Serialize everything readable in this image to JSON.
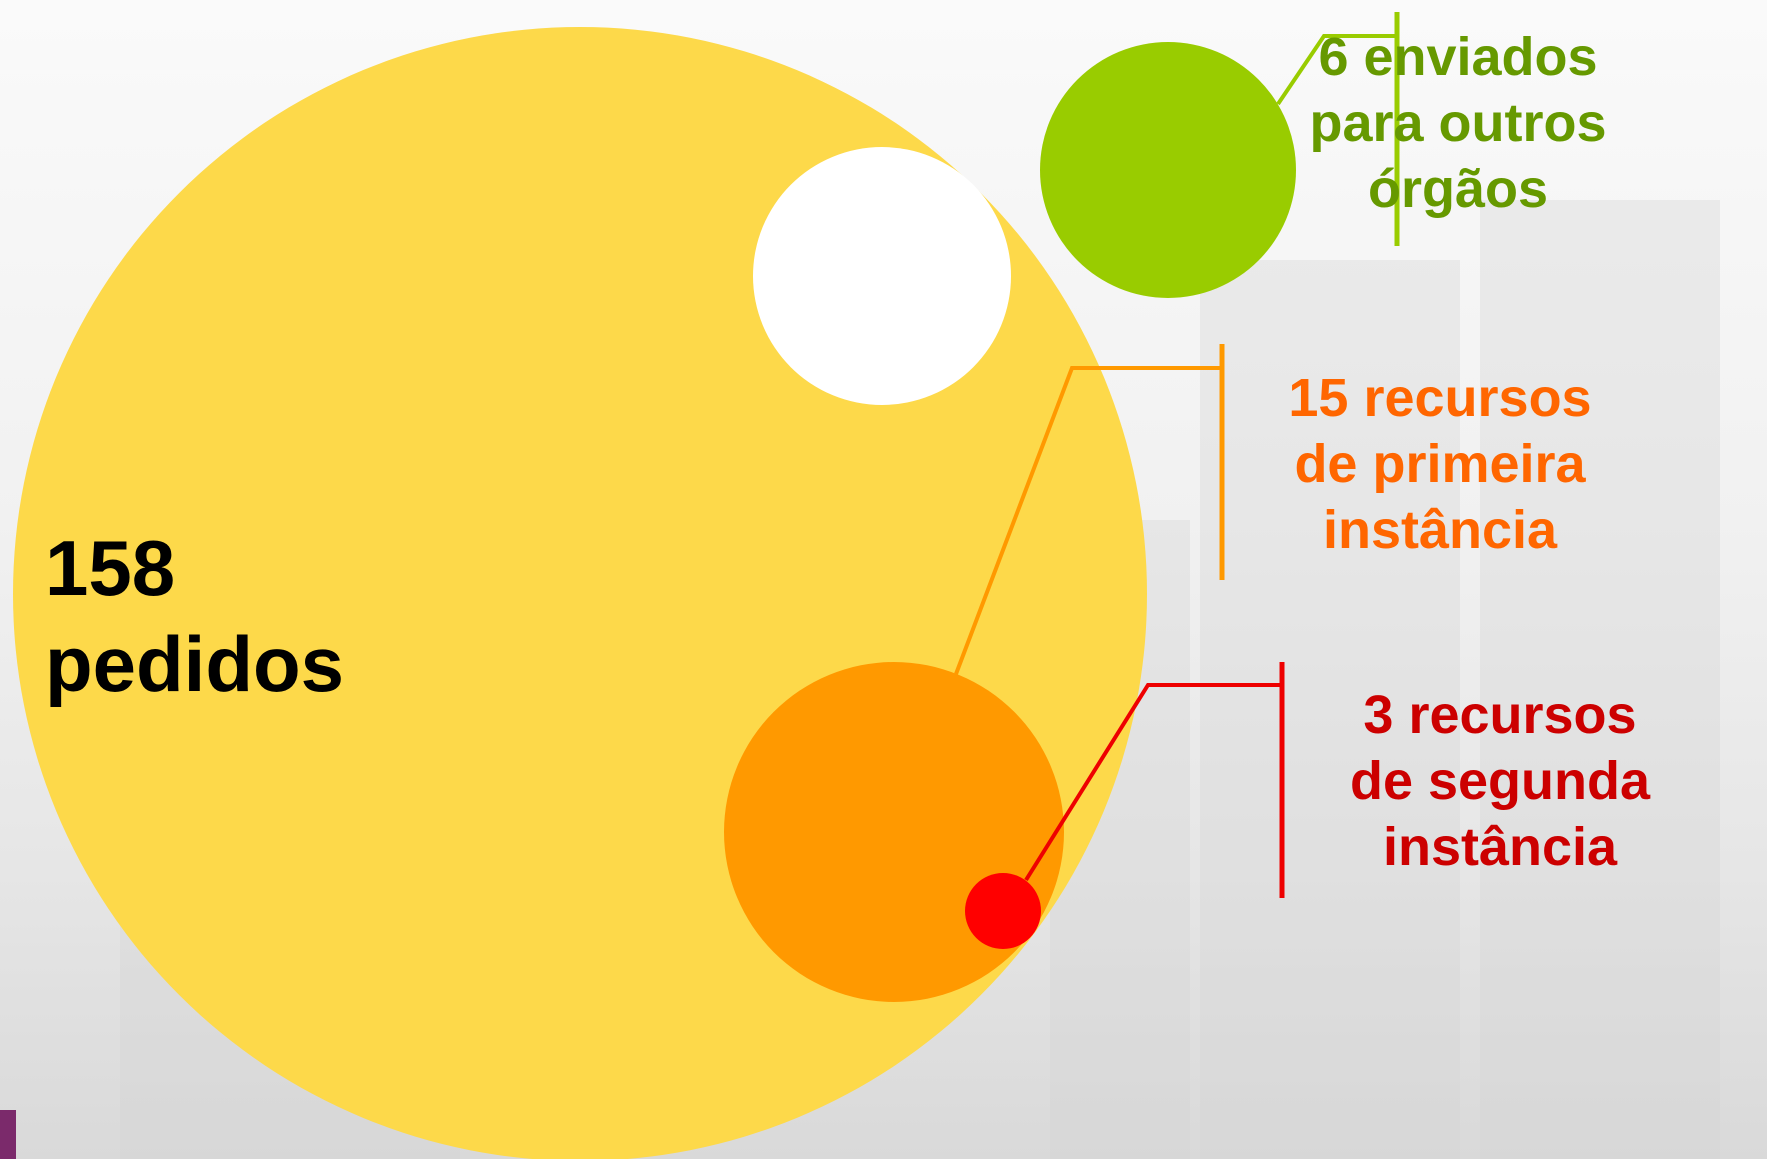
{
  "diagram": {
    "total": {
      "text": "158\npedidos",
      "color": "#fdd94a"
    },
    "forwarded": {
      "text": "6 enviados\npara outros\nórgãos",
      "color": "#99cc00",
      "text_color": "#669900"
    },
    "first_instance": {
      "text": "15 recursos\nde primeira\ninstância",
      "color": "#ff9900",
      "text_color": "#ff6600"
    },
    "second_instance": {
      "text": "3 recursos\nde segunda\ninstância",
      "color": "#ff0000",
      "text_color": "#cc0000"
    },
    "highlight_color": "#ffffff"
  }
}
